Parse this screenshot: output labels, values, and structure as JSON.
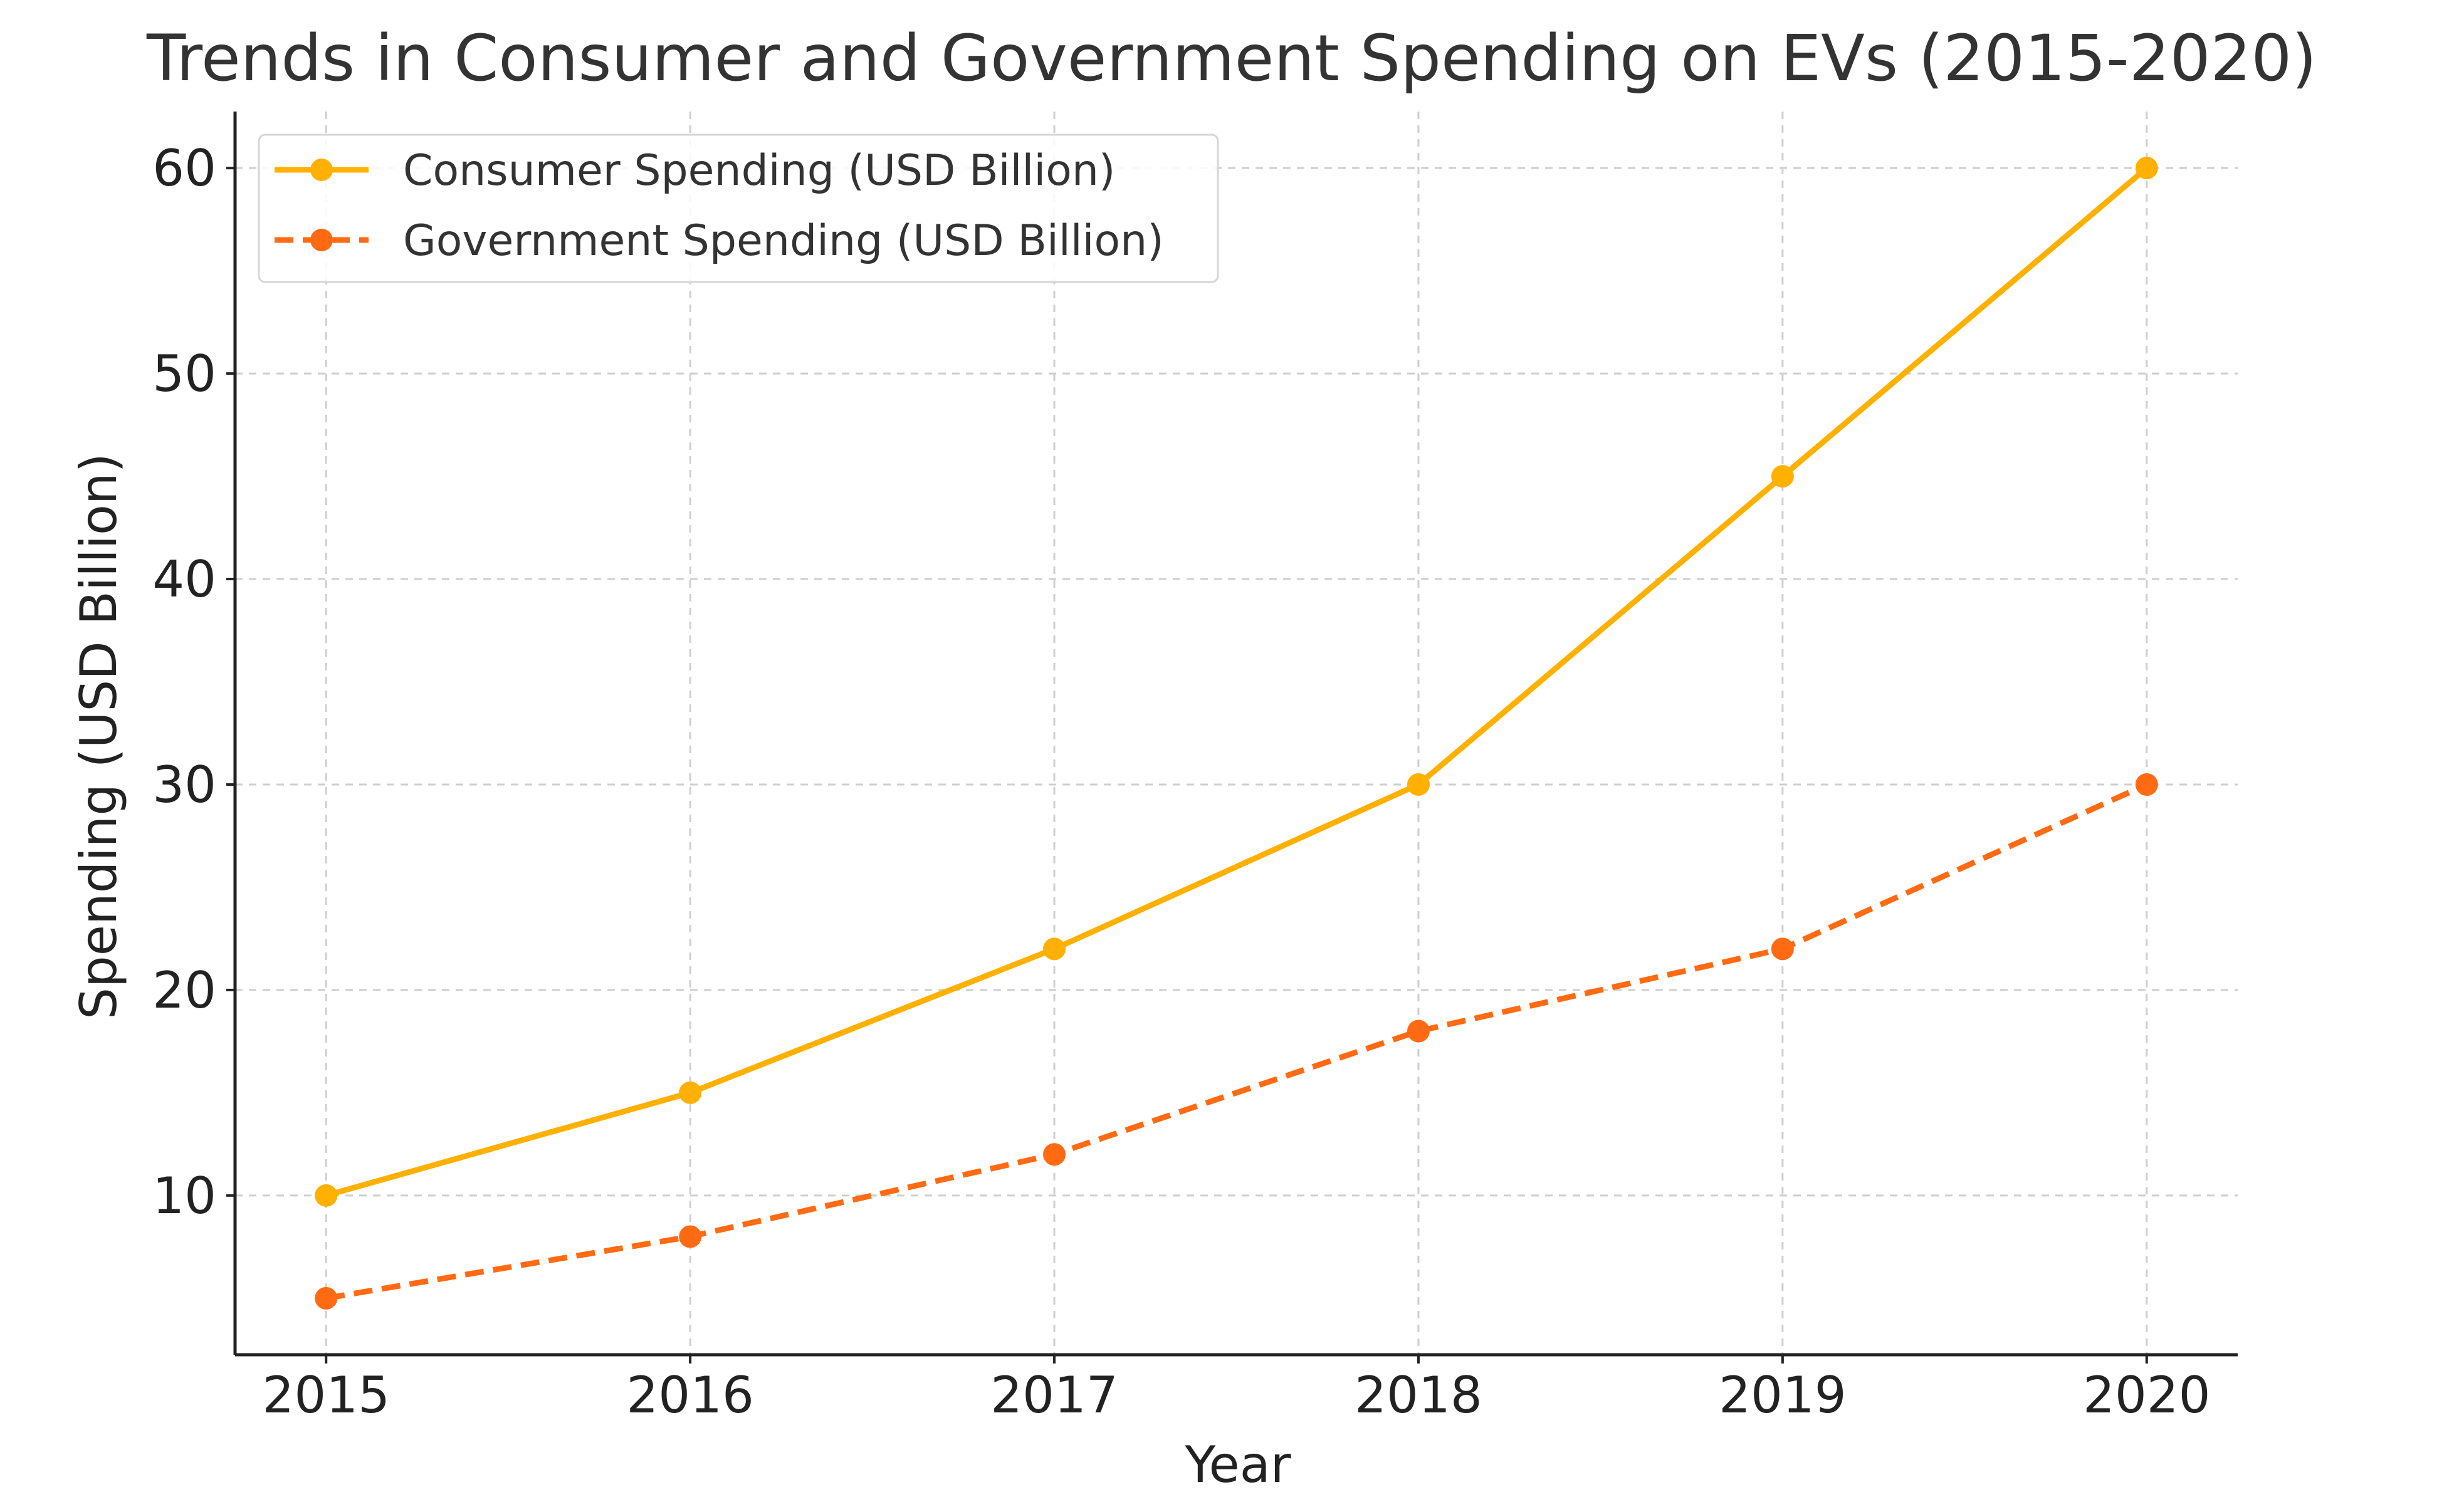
{
  "chart_data": {
    "type": "line",
    "title": "Trends in Consumer and Government Spending on EVs (2015-2020)",
    "xlabel": "Year",
    "ylabel": "Spending (USD Billion)",
    "x": [
      2015,
      2016,
      2017,
      2018,
      2019,
      2020
    ],
    "x_tick_labels": [
      "2015",
      "2016",
      "2017",
      "2018",
      "2019",
      "2020"
    ],
    "xlim": [
      2014.75,
      2020.25
    ],
    "ylim": [
      2.25,
      62.75
    ],
    "y_ticks": [
      10,
      20,
      30,
      40,
      50,
      60
    ],
    "y_tick_labels": [
      "10",
      "20",
      "30",
      "40",
      "50",
      "60"
    ],
    "grid": true,
    "legend_position": "top-left",
    "series": [
      {
        "name": "Consumer Spending (USD Billion)",
        "values": [
          10,
          15,
          22,
          30,
          45,
          60
        ],
        "color": "#FFB000",
        "line_style": "solid",
        "marker": "circle"
      },
      {
        "name": "Government Spending (USD Billion)",
        "values": [
          5,
          8,
          12,
          18,
          22,
          30
        ],
        "color": "#FF6A13",
        "line_style": "dashed",
        "marker": "circle"
      }
    ]
  }
}
